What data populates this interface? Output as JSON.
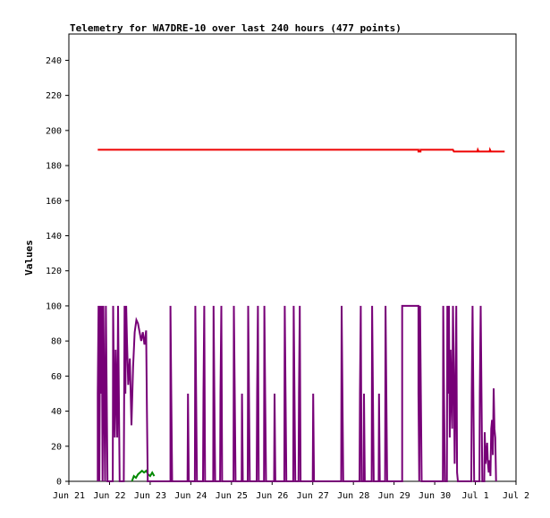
{
  "chart_data": {
    "type": "line",
    "title": "Telemetry for WA7DRE-10 over last 240 hours (477 points)",
    "ylabel": "Values",
    "xlabel": "",
    "ylim": [
      0,
      255
    ],
    "xlim": [
      0,
      11
    ],
    "y_ticks": [
      0,
      20,
      40,
      60,
      80,
      100,
      120,
      140,
      160,
      180,
      200,
      220,
      240
    ],
    "x_ticks": [
      {
        "label": "Jun 21",
        "x": 0
      },
      {
        "label": "Jun 22",
        "x": 1
      },
      {
        "label": "Jun 23",
        "x": 2
      },
      {
        "label": "Jun 24",
        "x": 3
      },
      {
        "label": "Jun 25",
        "x": 4
      },
      {
        "label": "Jun 26",
        "x": 5
      },
      {
        "label": "Jun 27",
        "x": 6
      },
      {
        "label": "Jun 28",
        "x": 7
      },
      {
        "label": "Jun 29",
        "x": 8
      },
      {
        "label": "Jun 30",
        "x": 9
      },
      {
        "label": "Jul 1",
        "x": 10
      },
      {
        "label": "Jul 2",
        "x": 11
      }
    ],
    "grid": false,
    "series": [
      {
        "color": "#ee0000",
        "points": [
          [
            0.71,
            189
          ],
          [
            8.6,
            189
          ],
          [
            8.6,
            188
          ],
          [
            8.65,
            188
          ],
          [
            8.65,
            189
          ],
          [
            9.45,
            189
          ],
          [
            9.47,
            188
          ],
          [
            10.05,
            188
          ],
          [
            10.06,
            189
          ],
          [
            10.08,
            188
          ],
          [
            10.35,
            188
          ],
          [
            10.36,
            189
          ],
          [
            10.38,
            188
          ],
          [
            10.72,
            188
          ]
        ]
      },
      {
        "color": "#008800",
        "points": [
          [
            1.55,
            0
          ],
          [
            1.6,
            3
          ],
          [
            1.65,
            2
          ],
          [
            1.7,
            4
          ],
          [
            1.75,
            5
          ],
          [
            1.8,
            6
          ],
          [
            1.85,
            5
          ],
          [
            1.9,
            6
          ],
          [
            1.95,
            4
          ],
          [
            2.0,
            3
          ],
          [
            2.05,
            5
          ],
          [
            2.1,
            3
          ]
        ]
      },
      {
        "color": "#770077",
        "points": [
          [
            0.71,
            0
          ],
          [
            0.71,
            50
          ],
          [
            0.73,
            100
          ],
          [
            0.75,
            0
          ],
          [
            0.77,
            100
          ],
          [
            0.79,
            50
          ],
          [
            0.81,
            100
          ],
          [
            0.83,
            0
          ],
          [
            0.85,
            100
          ],
          [
            0.87,
            50
          ],
          [
            0.89,
            0
          ],
          [
            0.91,
            100
          ],
          [
            0.93,
            50
          ],
          [
            0.95,
            0
          ],
          [
            1.08,
            0
          ],
          [
            1.09,
            100
          ],
          [
            1.11,
            50
          ],
          [
            1.13,
            25
          ],
          [
            1.15,
            75
          ],
          [
            1.17,
            50
          ],
          [
            1.19,
            25
          ],
          [
            1.21,
            100
          ],
          [
            1.23,
            50
          ],
          [
            1.25,
            0
          ],
          [
            1.35,
            0
          ],
          [
            1.37,
            100
          ],
          [
            1.39,
            50
          ],
          [
            1.41,
            100
          ],
          [
            1.43,
            80
          ],
          [
            1.46,
            55
          ],
          [
            1.5,
            70
          ],
          [
            1.54,
            32
          ],
          [
            1.58,
            65
          ],
          [
            1.62,
            85
          ],
          [
            1.66,
            92
          ],
          [
            1.7,
            90
          ],
          [
            1.74,
            85
          ],
          [
            1.78,
            80
          ],
          [
            1.82,
            85
          ],
          [
            1.86,
            78
          ],
          [
            1.9,
            86
          ],
          [
            1.92,
            40
          ],
          [
            1.94,
            0
          ],
          [
            2.5,
            0
          ],
          [
            2.5,
            100
          ],
          [
            2.52,
            50
          ],
          [
            2.54,
            0
          ],
          [
            2.92,
            0
          ],
          [
            2.93,
            50
          ],
          [
            2.95,
            0
          ],
          [
            3.1,
            0
          ],
          [
            3.11,
            100
          ],
          [
            3.13,
            50
          ],
          [
            3.15,
            0
          ],
          [
            3.3,
            0
          ],
          [
            3.31,
            50
          ],
          [
            3.33,
            100
          ],
          [
            3.35,
            0
          ],
          [
            3.55,
            0
          ],
          [
            3.56,
            100
          ],
          [
            3.58,
            50
          ],
          [
            3.6,
            0
          ],
          [
            3.72,
            0
          ],
          [
            3.73,
            50
          ],
          [
            3.75,
            100
          ],
          [
            3.77,
            0
          ],
          [
            4.05,
            0
          ],
          [
            4.06,
            100
          ],
          [
            4.08,
            50
          ],
          [
            4.1,
            0
          ],
          [
            4.25,
            0
          ],
          [
            4.26,
            50
          ],
          [
            4.28,
            0
          ],
          [
            4.4,
            0
          ],
          [
            4.41,
            100
          ],
          [
            4.43,
            50
          ],
          [
            4.45,
            0
          ],
          [
            4.62,
            0
          ],
          [
            4.63,
            50
          ],
          [
            4.65,
            100
          ],
          [
            4.67,
            0
          ],
          [
            4.8,
            0
          ],
          [
            4.81,
            100
          ],
          [
            4.83,
            50
          ],
          [
            4.85,
            0
          ],
          [
            5.05,
            0
          ],
          [
            5.06,
            50
          ],
          [
            5.08,
            0
          ],
          [
            5.3,
            0
          ],
          [
            5.31,
            100
          ],
          [
            5.33,
            50
          ],
          [
            5.35,
            0
          ],
          [
            5.52,
            0
          ],
          [
            5.53,
            100
          ],
          [
            5.55,
            50
          ],
          [
            5.57,
            0
          ],
          [
            5.65,
            0
          ],
          [
            5.66,
            50
          ],
          [
            5.68,
            100
          ],
          [
            5.7,
            0
          ],
          [
            6.0,
            0
          ],
          [
            6.01,
            50
          ],
          [
            6.03,
            0
          ],
          [
            6.7,
            0
          ],
          [
            6.71,
            100
          ],
          [
            6.73,
            50
          ],
          [
            6.75,
            0
          ],
          [
            7.15,
            0
          ],
          [
            7.16,
            50
          ],
          [
            7.18,
            100
          ],
          [
            7.2,
            0
          ],
          [
            7.25,
            0
          ],
          [
            7.26,
            50
          ],
          [
            7.28,
            0
          ],
          [
            7.45,
            0
          ],
          [
            7.46,
            100
          ],
          [
            7.48,
            50
          ],
          [
            7.5,
            0
          ],
          [
            7.62,
            0
          ],
          [
            7.63,
            50
          ],
          [
            7.65,
            0
          ],
          [
            7.78,
            0
          ],
          [
            7.79,
            100
          ],
          [
            7.81,
            50
          ],
          [
            7.83,
            0
          ],
          [
            8.2,
            0
          ],
          [
            8.2,
            100
          ],
          [
            8.6,
            100
          ],
          [
            8.6,
            50
          ],
          [
            8.62,
            0
          ],
          [
            8.64,
            100
          ],
          [
            8.66,
            50
          ],
          [
            8.68,
            0
          ],
          [
            9.2,
            0
          ],
          [
            9.21,
            100
          ],
          [
            9.23,
            50
          ],
          [
            9.25,
            0
          ],
          [
            9.3,
            0
          ],
          [
            9.31,
            100
          ],
          [
            9.33,
            50
          ],
          [
            9.35,
            100
          ],
          [
            9.37,
            25
          ],
          [
            9.39,
            75
          ],
          [
            9.41,
            50
          ],
          [
            9.43,
            30
          ],
          [
            9.45,
            100
          ],
          [
            9.47,
            60
          ],
          [
            9.49,
            10
          ],
          [
            9.51,
            50
          ],
          [
            9.53,
            100
          ],
          [
            9.55,
            5
          ],
          [
            9.57,
            0
          ],
          [
            9.9,
            0
          ],
          [
            9.91,
            50
          ],
          [
            9.93,
            100
          ],
          [
            9.95,
            50
          ],
          [
            9.97,
            0
          ],
          [
            10.1,
            0
          ],
          [
            10.11,
            50
          ],
          [
            10.13,
            100
          ],
          [
            10.15,
            50
          ],
          [
            10.17,
            0
          ],
          [
            10.22,
            0
          ],
          [
            10.23,
            28
          ],
          [
            10.25,
            10
          ],
          [
            10.27,
            15
          ],
          [
            10.29,
            22
          ],
          [
            10.31,
            10
          ],
          [
            10.33,
            5
          ],
          [
            10.35,
            12
          ],
          [
            10.37,
            3
          ],
          [
            10.39,
            30
          ],
          [
            10.41,
            35
          ],
          [
            10.43,
            15
          ],
          [
            10.45,
            53
          ],
          [
            10.47,
            30
          ],
          [
            10.49,
            25
          ],
          [
            10.51,
            0
          ]
        ]
      }
    ]
  }
}
